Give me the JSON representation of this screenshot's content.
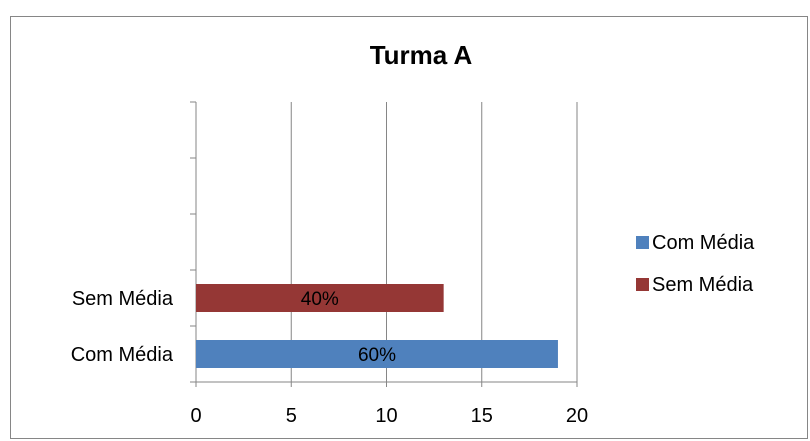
{
  "chart_data": {
    "type": "bar",
    "orientation": "horizontal",
    "title": "Turma A",
    "categories": [
      "Com  Média",
      "Sem Média"
    ],
    "series": [
      {
        "name": "Com  Média",
        "color": "#4f81bd",
        "values": [
          19,
          null
        ],
        "data_labels": [
          "60%",
          ""
        ]
      },
      {
        "name": "Sem Média",
        "color": "#953735",
        "values": [
          null,
          13
        ],
        "data_labels": [
          "",
          "40%"
        ]
      }
    ],
    "xlim": [
      0,
      20
    ],
    "x_ticks": [
      0,
      5,
      10,
      15,
      20
    ],
    "y_ticks": 5,
    "grid": {
      "vertical": true,
      "horizontal": false
    },
    "legend": {
      "position": "right"
    },
    "xlabel": "",
    "ylabel": ""
  }
}
